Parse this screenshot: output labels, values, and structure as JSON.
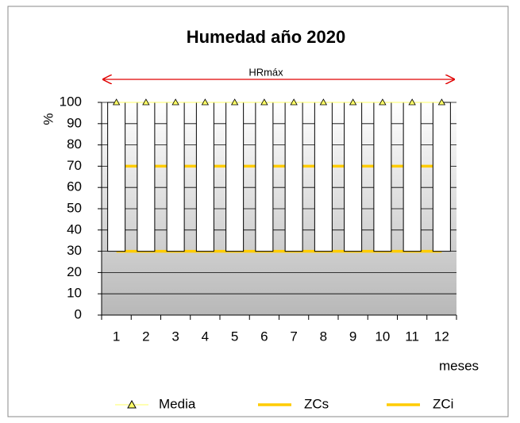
{
  "chart_data": {
    "type": "line",
    "title": "Humedad año 2020",
    "annotation": "HRmáx",
    "y_label": "%",
    "x_label": "meses",
    "categories": [
      "1",
      "2",
      "3",
      "4",
      "5",
      "6",
      "7",
      "8",
      "9",
      "10",
      "11",
      "12"
    ],
    "series": [
      {
        "name": "Media",
        "color": "#ffff66",
        "marker": "triangle",
        "values": [
          100,
          100,
          100,
          100,
          100,
          100,
          100,
          100,
          100,
          100,
          100,
          100
        ]
      },
      {
        "name": "ZCs",
        "color": "#ffcc00",
        "values": [
          70,
          70,
          70,
          70,
          70,
          70,
          70,
          70,
          70,
          70,
          70,
          70
        ]
      },
      {
        "name": "ZCi",
        "color": "#ffcc00",
        "values": [
          30,
          30,
          30,
          30,
          30,
          30,
          30,
          30,
          30,
          30,
          30,
          30
        ]
      }
    ],
    "ylim": [
      0,
      100
    ],
    "yticks": [
      0,
      10,
      20,
      30,
      40,
      50,
      60,
      70,
      80,
      90,
      100
    ],
    "grid": true,
    "legend": "bottom"
  }
}
